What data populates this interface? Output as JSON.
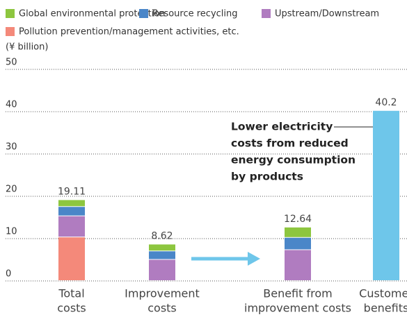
{
  "chart_data": {
    "type": "stacked-bar",
    "y_label": "(¥ billion)",
    "categories": [
      [
        "Total",
        "costs"
      ],
      [
        "Improvement",
        "costs"
      ],
      [
        "Benefit from",
        "improvement costs"
      ],
      [
        "Customer",
        "benefits"
      ]
    ],
    "series": [
      {
        "name": "Pollution prevention/management activities, etc.",
        "color": "#f4897a",
        "values": [
          10.3,
          0,
          0,
          null
        ]
      },
      {
        "name": "Upstream/Downstream",
        "color": "#b07cc0",
        "values": [
          5.0,
          5.0,
          7.3,
          null
        ]
      },
      {
        "name": "Resource recycling",
        "color": "#4a86c8",
        "values": [
          2.2,
          2.0,
          2.9,
          null
        ]
      },
      {
        "name": "Global environmental protection",
        "color": "#8dc63f",
        "values": [
          1.61,
          1.62,
          2.44,
          null
        ]
      },
      {
        "color": "#6ec6ea",
        "values": [
          null,
          null,
          null,
          40.2
        ]
      }
    ],
    "totals": [
      19.11,
      8.62,
      12.64,
      40.2
    ],
    "annotation": [
      "Lower electricity",
      "costs from reduced",
      "energy consumption",
      "by products"
    ],
    "ylim": [
      0,
      50
    ],
    "yticks": [
      0,
      10,
      20,
      30,
      40,
      50
    ],
    "grid": true
  }
}
